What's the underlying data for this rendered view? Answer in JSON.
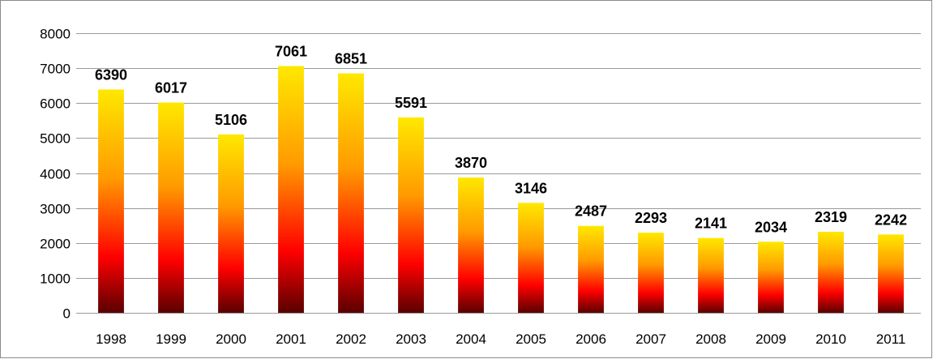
{
  "chart_data": {
    "type": "bar",
    "title": "",
    "xlabel": "",
    "ylabel": "",
    "categories": [
      "1998",
      "1999",
      "2000",
      "2001",
      "2002",
      "2003",
      "2004",
      "2005",
      "2006",
      "2007",
      "2008",
      "2009",
      "2010",
      "2011"
    ],
    "values": [
      6390,
      6017,
      5106,
      7061,
      6851,
      5591,
      3870,
      3146,
      2487,
      2293,
      2141,
      2034,
      2319,
      2242
    ],
    "ylim": [
      0,
      8000
    ],
    "yticks": [
      0,
      1000,
      2000,
      3000,
      4000,
      5000,
      6000,
      7000,
      8000
    ],
    "grid": true,
    "legend": "none",
    "data_labels": true,
    "bar_gradient": [
      "#ffe800",
      "#ff9a00",
      "#ff0000",
      "#5a0000"
    ],
    "gridline_color": "#9a9a9a"
  }
}
